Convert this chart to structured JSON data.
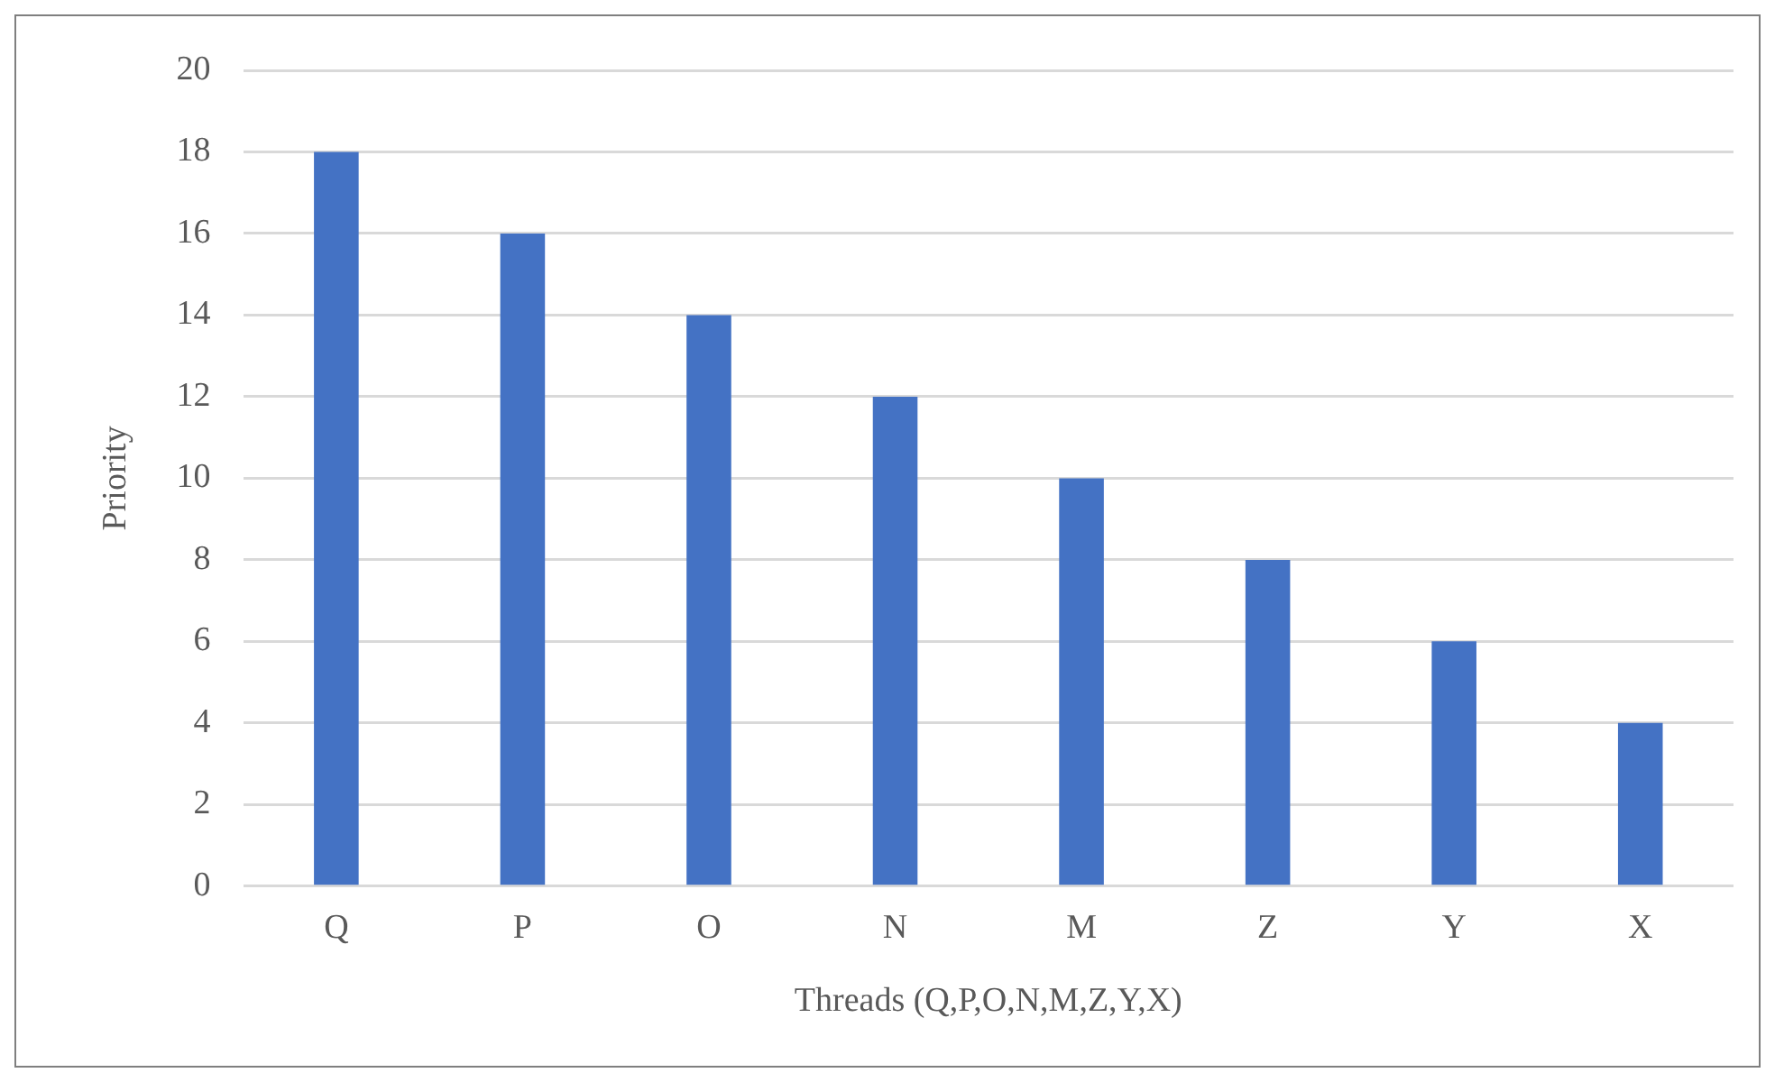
{
  "chart_data": {
    "type": "bar",
    "xlabel": "Threads (Q,P,O,N,M,Z,Y,X)",
    "ylabel": "Priority",
    "categories": [
      "Q",
      "P",
      "O",
      "N",
      "M",
      "Z",
      "Y",
      "X"
    ],
    "values": [
      18,
      16,
      14,
      12,
      10,
      8,
      6,
      4
    ],
    "color": "#4472c4",
    "ylim": [
      0,
      20
    ],
    "yticks": [
      0,
      2,
      4,
      6,
      8,
      10,
      12,
      14,
      16,
      18,
      20
    ],
    "grid": "y",
    "legend": false
  }
}
